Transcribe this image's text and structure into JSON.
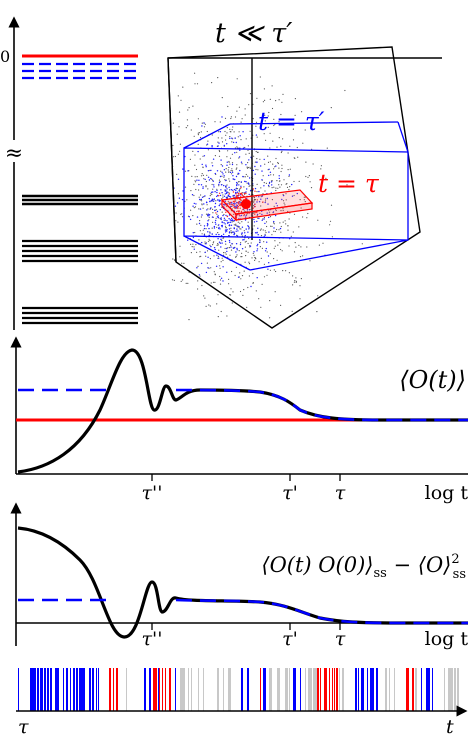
{
  "spectrum": {
    "zero_label": "0",
    "break_glyph": "≈",
    "line_colors": {
      "ground": "#ff0000",
      "excited": "#0000ff",
      "bulk": "#000000"
    }
  },
  "cube": {
    "title": "t ≪ τ′",
    "mid_box_label": "t = τ′",
    "inner_box_label": "t = τ",
    "colors": {
      "outer": "#000000",
      "middle": "#0000ff",
      "inner": "#ff0000"
    }
  },
  "plot1": {
    "label": "⟨O(t)⟩",
    "ticks": [
      "τ''",
      "τ'",
      "τ"
    ],
    "xlabel": "log t"
  },
  "plot2": {
    "label_main": "⟨O(t) O(0)⟩",
    "label_sub1": "ss",
    "label_minus": " − ⟨O⟩",
    "label_sup": "2",
    "label_sub2": "ss",
    "ticks": [
      "τ''",
      "τ'",
      "τ"
    ],
    "xlabel": "log t"
  },
  "barcode": {
    "start_label": "τ",
    "end_label": "t",
    "colors": {
      "blue": "#0000ff",
      "red": "#ff0000",
      "gray": "#c8c8c8"
    }
  }
}
